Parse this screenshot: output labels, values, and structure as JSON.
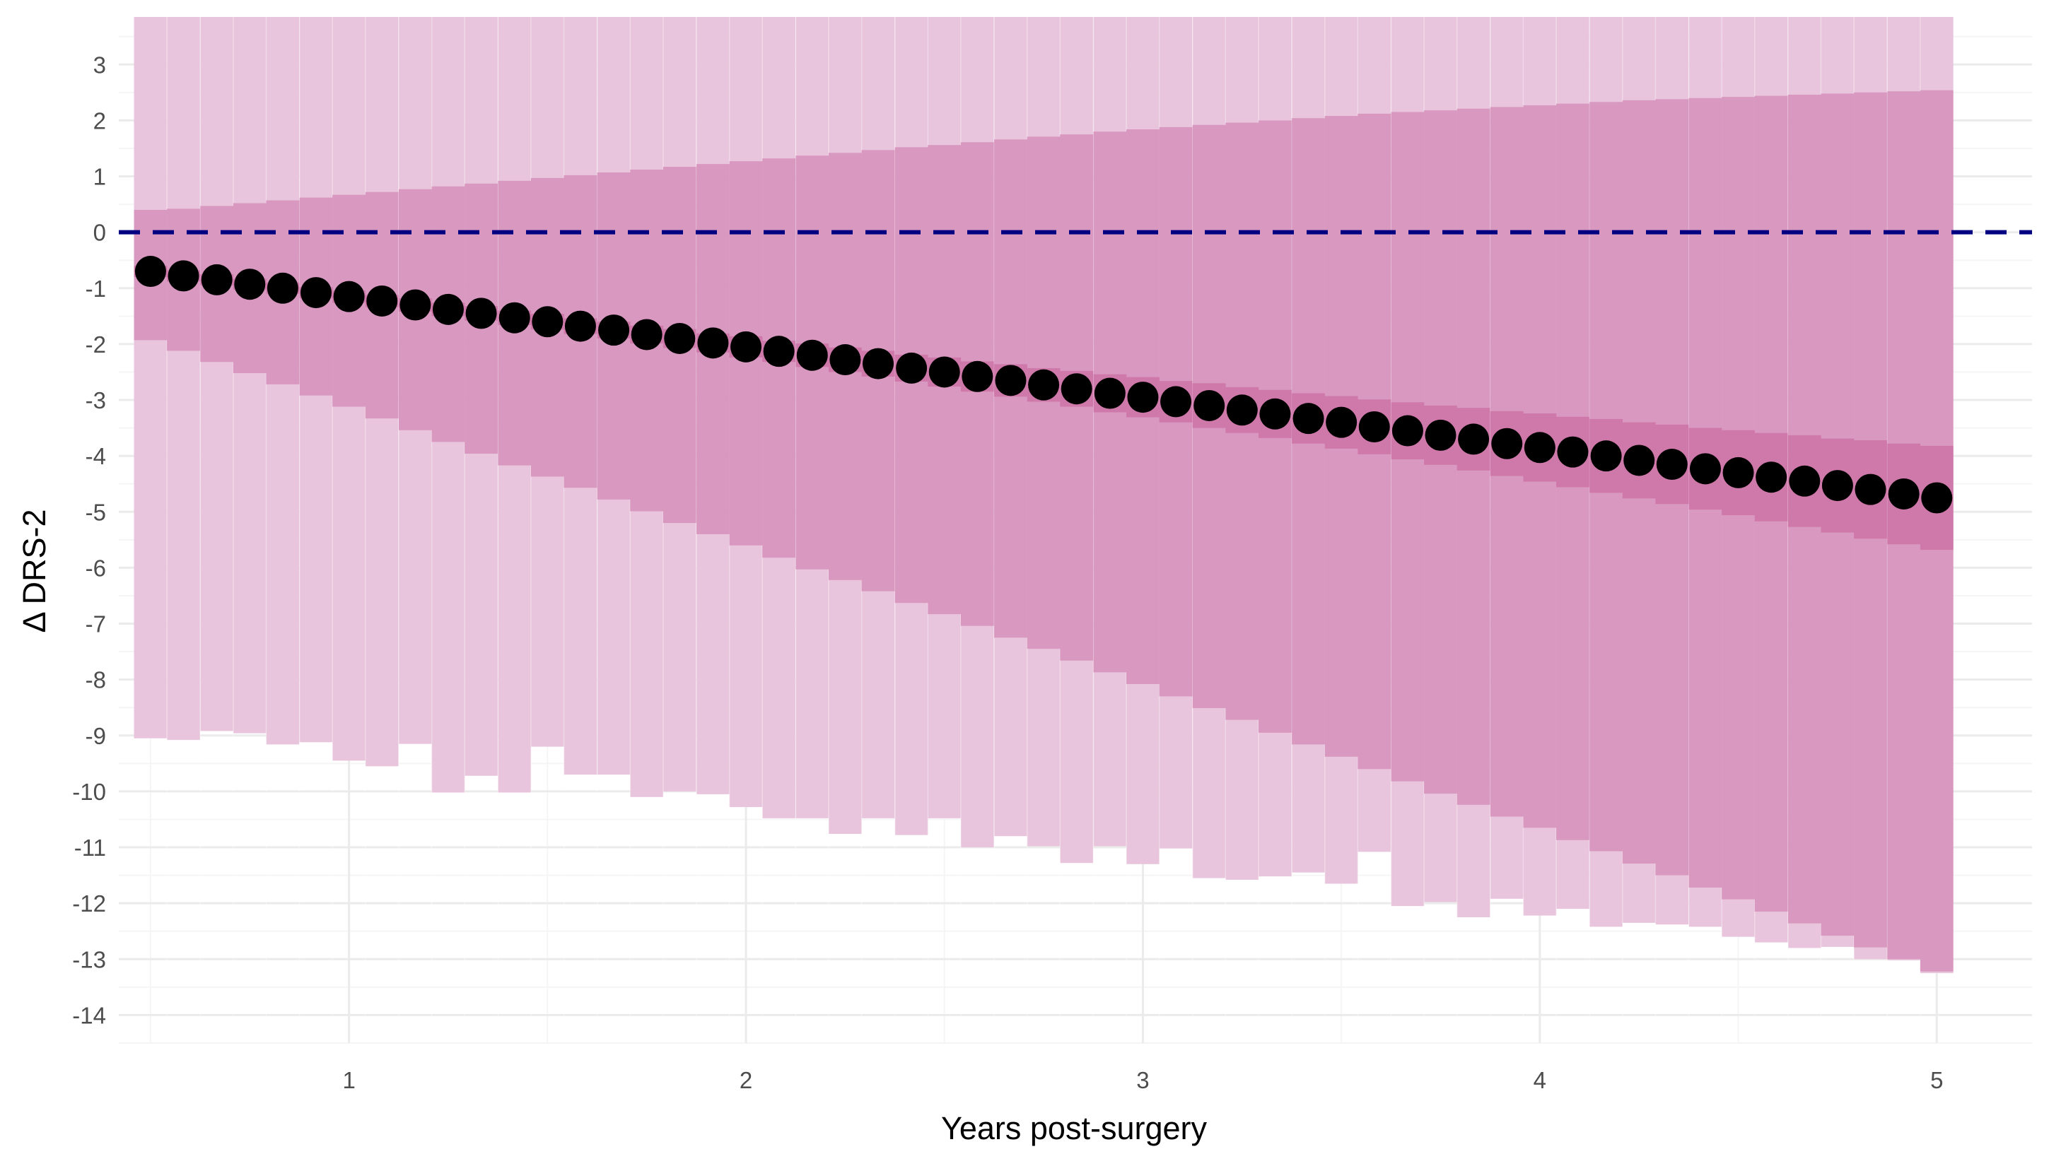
{
  "chart_data": {
    "type": "bar",
    "xlabel": "Years post-surgery",
    "ylabel": "Δ DRS-2",
    "xlim": [
      0.42,
      5.24
    ],
    "ylim": [
      -14.5,
      3.85
    ],
    "x_ticks": [
      1,
      2,
      3,
      4,
      5
    ],
    "y_ticks": [
      3,
      2,
      1,
      0,
      -1,
      -2,
      -3,
      -4,
      -5,
      -6,
      -7,
      -8,
      -9,
      -10,
      -11,
      -12,
      -13,
      -14
    ],
    "reference_line": {
      "y": 0,
      "style": "dashed",
      "color": "#000080"
    },
    "grid": true,
    "colors": {
      "outer_band": "#e8c5dc",
      "middle_band": "#d998c0",
      "inner_band": "#cf78aa",
      "point": "#000000",
      "grid_major": "#ebebeb",
      "grid_minor": "#f5f5f5"
    },
    "x": [
      0.5,
      0.583,
      0.667,
      0.75,
      0.833,
      0.917,
      1.0,
      1.083,
      1.167,
      1.25,
      1.333,
      1.417,
      1.5,
      1.583,
      1.667,
      1.75,
      1.833,
      1.917,
      2.0,
      2.083,
      2.167,
      2.25,
      2.333,
      2.417,
      2.5,
      2.583,
      2.667,
      2.75,
      2.833,
      2.917,
      3.0,
      3.083,
      3.167,
      3.25,
      3.333,
      3.417,
      3.5,
      3.583,
      3.667,
      3.75,
      3.833,
      3.917,
      4.0,
      4.083,
      4.167,
      4.25,
      4.333,
      4.417,
      4.5,
      4.583,
      4.667,
      4.75,
      4.833,
      4.917,
      5.0
    ],
    "series": [
      {
        "values": [
          -0.7,
          -0.78,
          -0.85,
          -0.93,
          -1.0,
          -1.08,
          -1.15,
          -1.23,
          -1.3,
          -1.38,
          -1.45,
          -1.53,
          -1.6,
          -1.68,
          -1.75,
          -1.83,
          -1.9,
          -1.98,
          -2.05,
          -2.13,
          -2.2,
          -2.28,
          -2.35,
          -2.43,
          -2.5,
          -2.58,
          -2.65,
          -2.73,
          -2.8,
          -2.88,
          -2.95,
          -3.03,
          -3.1,
          -3.18,
          -3.25,
          -3.33,
          -3.4,
          -3.48,
          -3.55,
          -3.63,
          -3.7,
          -3.78,
          -3.85,
          -3.93,
          -4.0,
          -4.08,
          -4.15,
          -4.23,
          -4.3,
          -4.38,
          -4.45,
          -4.53,
          -4.6,
          -4.68,
          -4.75
        ]
      },
      {
        "values_low": [
          -0.8,
          -0.88,
          -0.95,
          -1.03,
          -1.1,
          -1.18,
          -1.26,
          -1.34,
          -1.42,
          -1.5,
          -1.58,
          -1.66,
          -1.74,
          -1.82,
          -1.9,
          -1.99,
          -2.07,
          -2.15,
          -2.24,
          -2.32,
          -2.41,
          -2.5,
          -2.58,
          -2.67,
          -2.76,
          -2.85,
          -2.94,
          -3.03,
          -3.12,
          -3.22,
          -3.31,
          -3.4,
          -3.5,
          -3.59,
          -3.68,
          -3.78,
          -3.87,
          -3.97,
          -4.06,
          -4.16,
          -4.26,
          -4.36,
          -4.46,
          -4.56,
          -4.66,
          -4.76,
          -4.86,
          -4.96,
          -5.06,
          -5.17,
          -5.27,
          -5.37,
          -5.48,
          -5.58,
          -5.68
        ],
        "values_high": [
          -0.6,
          -0.68,
          -0.75,
          -0.83,
          -0.9,
          -0.98,
          -1.04,
          -1.12,
          -1.18,
          -1.26,
          -1.32,
          -1.4,
          -1.46,
          -1.54,
          -1.6,
          -1.67,
          -1.73,
          -1.81,
          -1.86,
          -1.94,
          -1.99,
          -2.06,
          -2.12,
          -2.19,
          -2.24,
          -2.31,
          -2.36,
          -2.43,
          -2.48,
          -2.54,
          -2.59,
          -2.66,
          -2.7,
          -2.77,
          -2.82,
          -2.88,
          -2.93,
          -2.99,
          -3.04,
          -3.1,
          -3.14,
          -3.2,
          -3.24,
          -3.3,
          -3.34,
          -3.4,
          -3.44,
          -3.5,
          -3.54,
          -3.59,
          -3.63,
          -3.69,
          -3.72,
          -3.78,
          -3.82
        ]
      },
      {
        "values_low": [
          -1.93,
          -2.12,
          -2.32,
          -2.52,
          -2.72,
          -2.92,
          -3.12,
          -3.33,
          -3.54,
          -3.75,
          -3.96,
          -4.17,
          -4.37,
          -4.57,
          -4.78,
          -4.99,
          -5.2,
          -5.4,
          -5.6,
          -5.82,
          -6.03,
          -6.22,
          -6.42,
          -6.63,
          -6.83,
          -7.04,
          -7.25,
          -7.45,
          -7.66,
          -7.87,
          -8.08,
          -8.3,
          -8.51,
          -8.72,
          -8.95,
          -9.16,
          -9.38,
          -9.6,
          -9.82,
          -10.04,
          -10.24,
          -10.45,
          -10.65,
          -10.87,
          -11.07,
          -11.29,
          -11.5,
          -11.72,
          -11.93,
          -12.15,
          -12.36,
          -12.58,
          -12.79,
          -13.0,
          -13.22
        ],
        "values_high": [
          0.4,
          0.42,
          0.47,
          0.52,
          0.57,
          0.62,
          0.67,
          0.72,
          0.77,
          0.82,
          0.87,
          0.92,
          0.97,
          1.02,
          1.07,
          1.12,
          1.17,
          1.22,
          1.27,
          1.32,
          1.37,
          1.42,
          1.47,
          1.52,
          1.56,
          1.61,
          1.66,
          1.71,
          1.75,
          1.8,
          1.84,
          1.88,
          1.92,
          1.96,
          2.0,
          2.04,
          2.08,
          2.12,
          2.15,
          2.18,
          2.21,
          2.24,
          2.27,
          2.3,
          2.33,
          2.36,
          2.38,
          2.4,
          2.42,
          2.44,
          2.46,
          2.48,
          2.5,
          2.52,
          2.54
        ]
      },
      {
        "values_low": [
          -9.05,
          -9.08,
          -8.92,
          -8.96,
          -9.16,
          -9.12,
          -9.45,
          -9.55,
          -9.15,
          -10.02,
          -9.72,
          -10.02,
          -9.2,
          -9.7,
          -9.7,
          -10.1,
          -10.0,
          -10.05,
          -10.28,
          -10.48,
          -10.48,
          -10.76,
          -10.48,
          -10.78,
          -10.48,
          -11.0,
          -10.8,
          -10.98,
          -11.28,
          -10.98,
          -11.3,
          -11.02,
          -11.55,
          -11.58,
          -11.52,
          -11.45,
          -11.65,
          -11.08,
          -12.05,
          -11.98,
          -12.25,
          -11.92,
          -12.22,
          -12.1,
          -12.42,
          -12.35,
          -12.38,
          -12.42,
          -12.6,
          -12.7,
          -12.8,
          -12.78,
          -13.0,
          -13.02,
          -13.25
        ],
        "values_high": [
          3.85,
          3.85,
          3.85,
          3.85,
          3.85,
          3.85,
          3.85,
          3.85,
          3.85,
          3.85,
          3.85,
          3.85,
          3.85,
          3.85,
          3.85,
          3.85,
          3.85,
          3.85,
          3.85,
          3.85,
          3.85,
          3.85,
          3.85,
          3.85,
          3.85,
          3.85,
          3.85,
          3.85,
          3.85,
          3.85,
          3.85,
          3.85,
          3.85,
          3.85,
          3.85,
          3.85,
          3.85,
          3.85,
          3.85,
          3.85,
          3.85,
          3.85,
          3.85,
          3.85,
          3.85,
          3.85,
          3.85,
          3.85,
          3.85,
          3.85,
          3.85,
          3.85,
          3.85,
          3.85,
          3.85
        ]
      }
    ]
  }
}
